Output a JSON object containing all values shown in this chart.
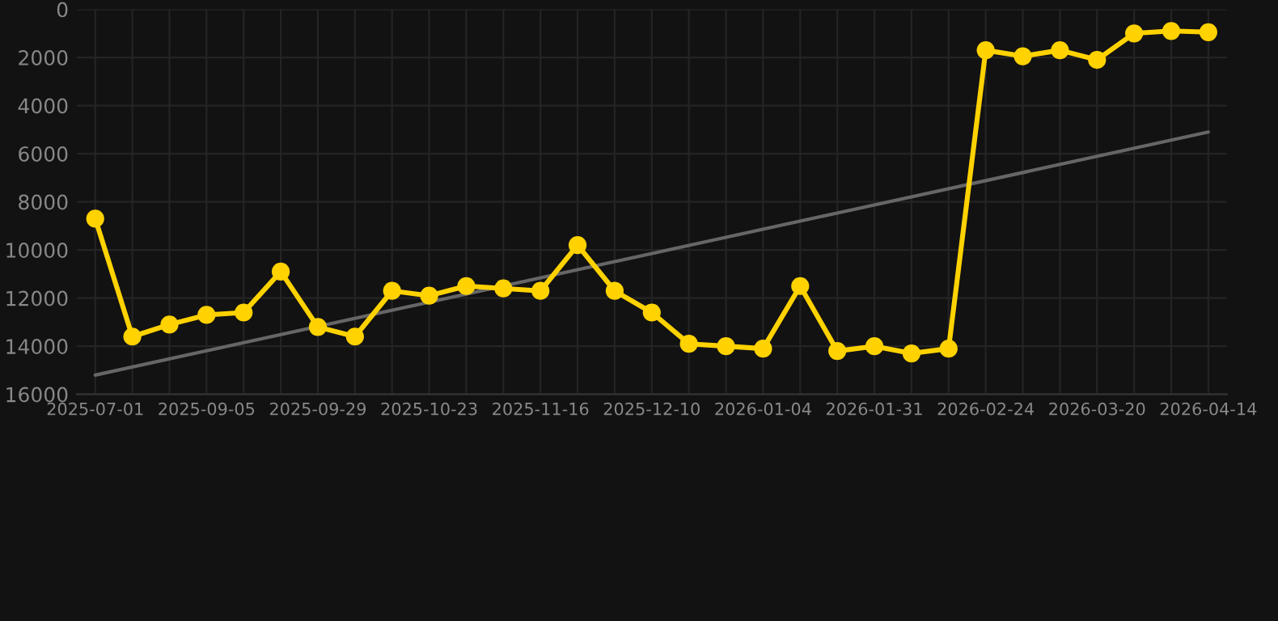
{
  "chart_data": {
    "type": "line",
    "categories": [
      "2025-07-01",
      null,
      null,
      "2025-09-05",
      null,
      null,
      "2025-09-29",
      null,
      null,
      "2025-10-23",
      null,
      null,
      "2025-11-16",
      null,
      null,
      "2025-12-10",
      null,
      null,
      "2026-01-04",
      null,
      null,
      "2026-01-31",
      null,
      null,
      "2026-02-24",
      null,
      null,
      "2026-03-20",
      null,
      null,
      "2026-04-14"
    ],
    "series": [
      {
        "color": "#ffd200",
        "marker": "circle",
        "values": [
          8700,
          13600,
          13100,
          12700,
          12600,
          10900,
          13200,
          13600,
          11700,
          11900,
          11500,
          11600,
          11700,
          9800,
          11700,
          12600,
          13900,
          14000,
          14100,
          11500,
          14200,
          14000,
          14300,
          14100,
          1700,
          1950,
          1700,
          2100,
          1000,
          900,
          950
        ]
      },
      {
        "type": "line",
        "color": "#666666",
        "marker": "none",
        "values": [
          15200,
          null,
          null,
          null,
          null,
          null,
          null,
          null,
          null,
          null,
          null,
          null,
          null,
          null,
          null,
          null,
          null,
          null,
          null,
          null,
          null,
          null,
          null,
          null,
          null,
          null,
          null,
          null,
          null,
          null,
          5100
        ]
      }
    ],
    "ylim": [
      16000,
      0
    ],
    "yticks": [
      0,
      2000,
      4000,
      6000,
      8000,
      10000,
      12000,
      14000,
      16000
    ],
    "grid": true,
    "legend": false
  }
}
